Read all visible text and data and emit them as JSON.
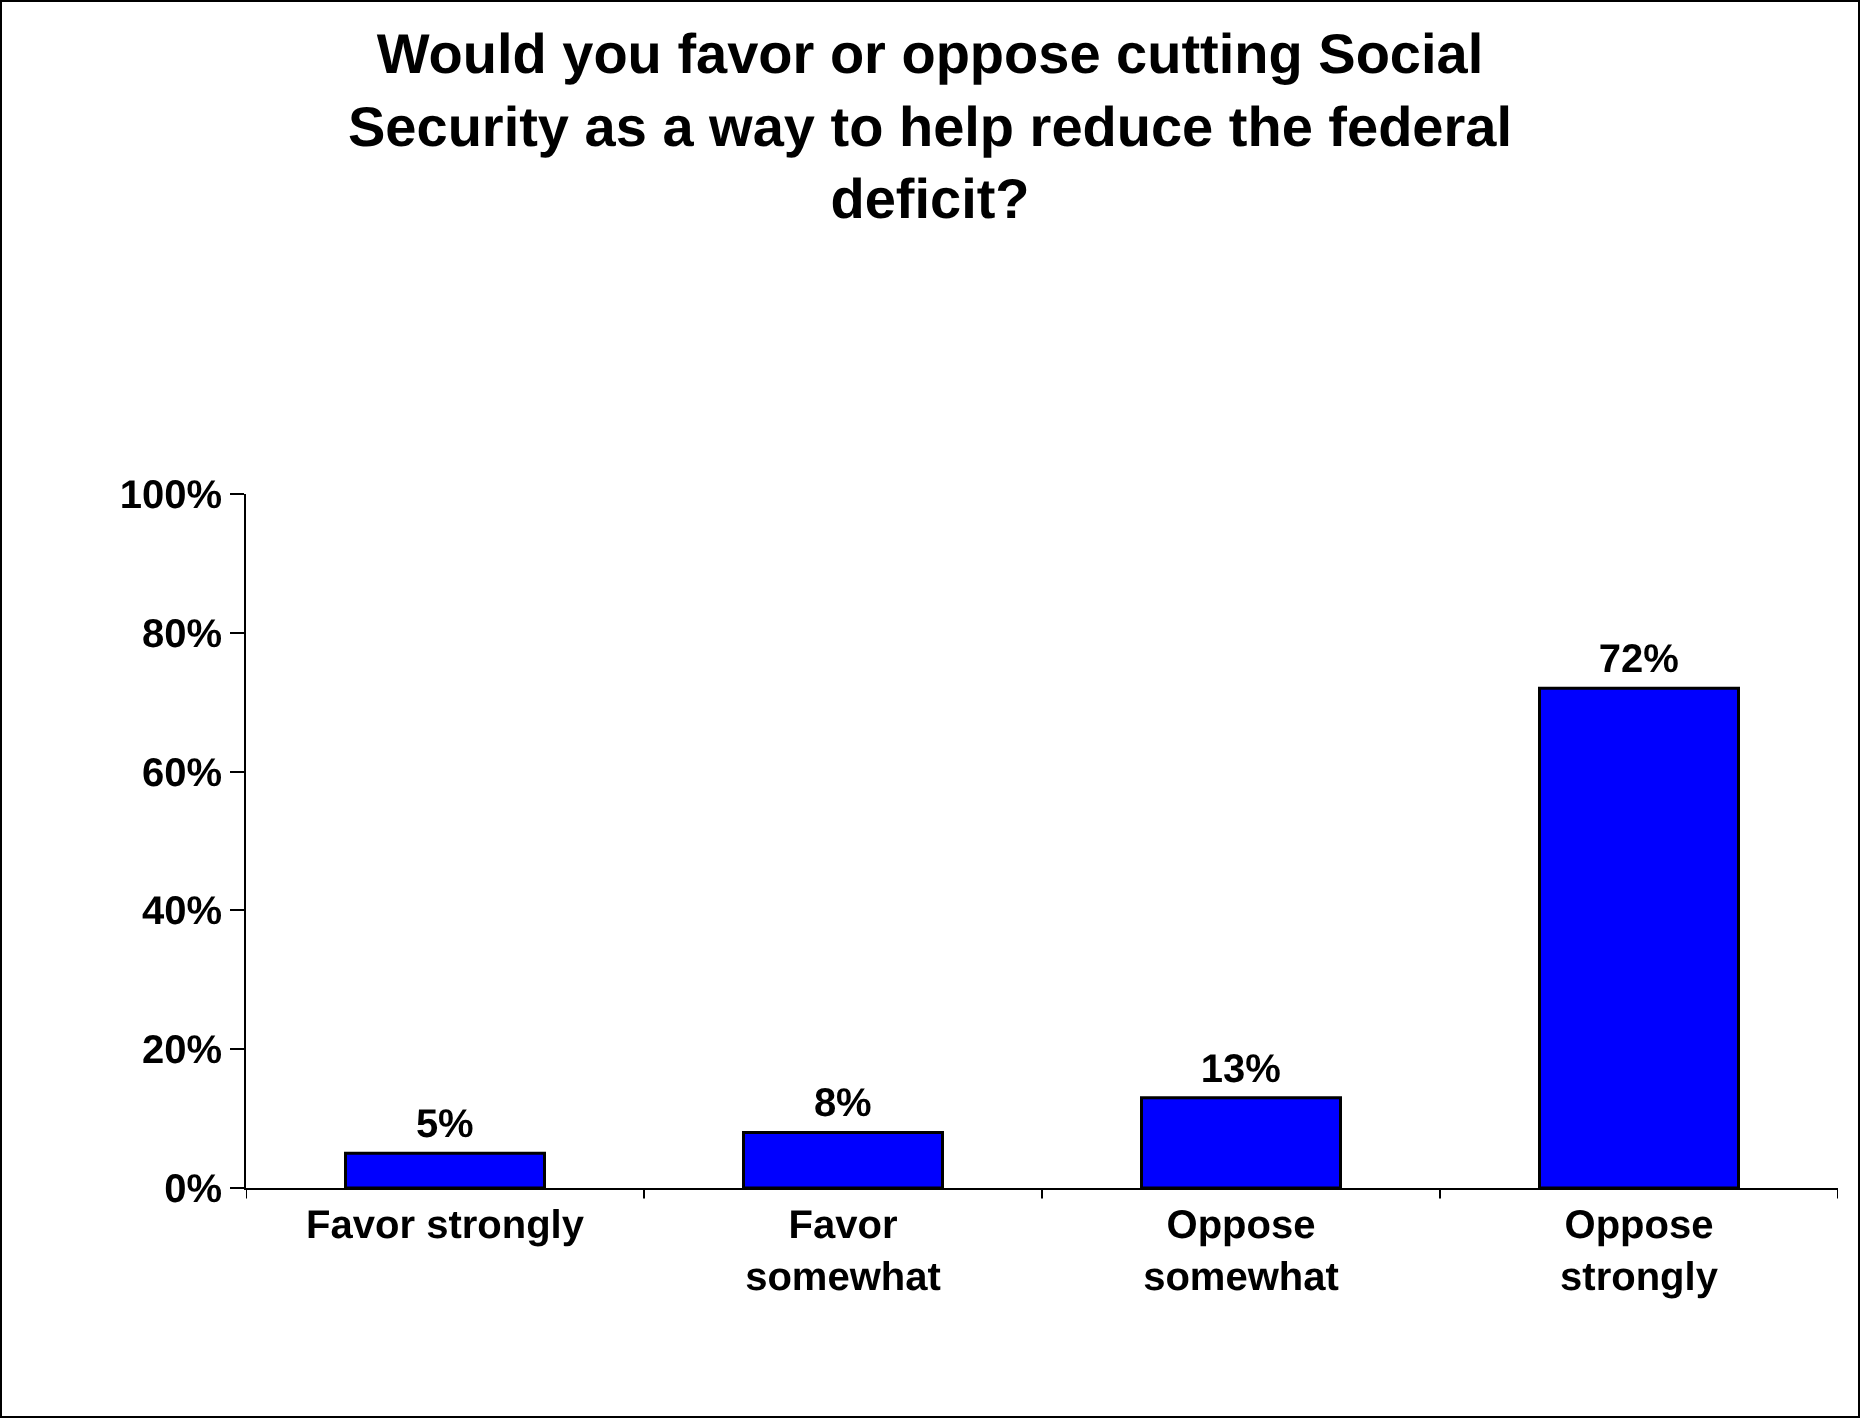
{
  "chart_data": {
    "type": "bar",
    "title": "Would you favor or oppose cutting Social\nSecurity as a way to help reduce the federal\ndeficit?",
    "categories": [
      "Favor strongly",
      "Favor\nsomewhat",
      "Oppose\nsomewhat",
      "Oppose\nstrongly"
    ],
    "values": [
      5,
      8,
      13,
      72
    ],
    "color": "#0000ff",
    "value_labels": [
      "5%",
      "8%",
      "13%",
      "72%"
    ],
    "ylim": [
      0,
      100
    ],
    "yticks": [
      {
        "value": 0,
        "label": "0%"
      },
      {
        "value": 20,
        "label": "20%"
      },
      {
        "value": 40,
        "label": "40%"
      },
      {
        "value": 60,
        "label": "60%"
      },
      {
        "value": 80,
        "label": "80%"
      },
      {
        "value": 100,
        "label": "100%"
      }
    ],
    "grid": false,
    "legend": false
  }
}
